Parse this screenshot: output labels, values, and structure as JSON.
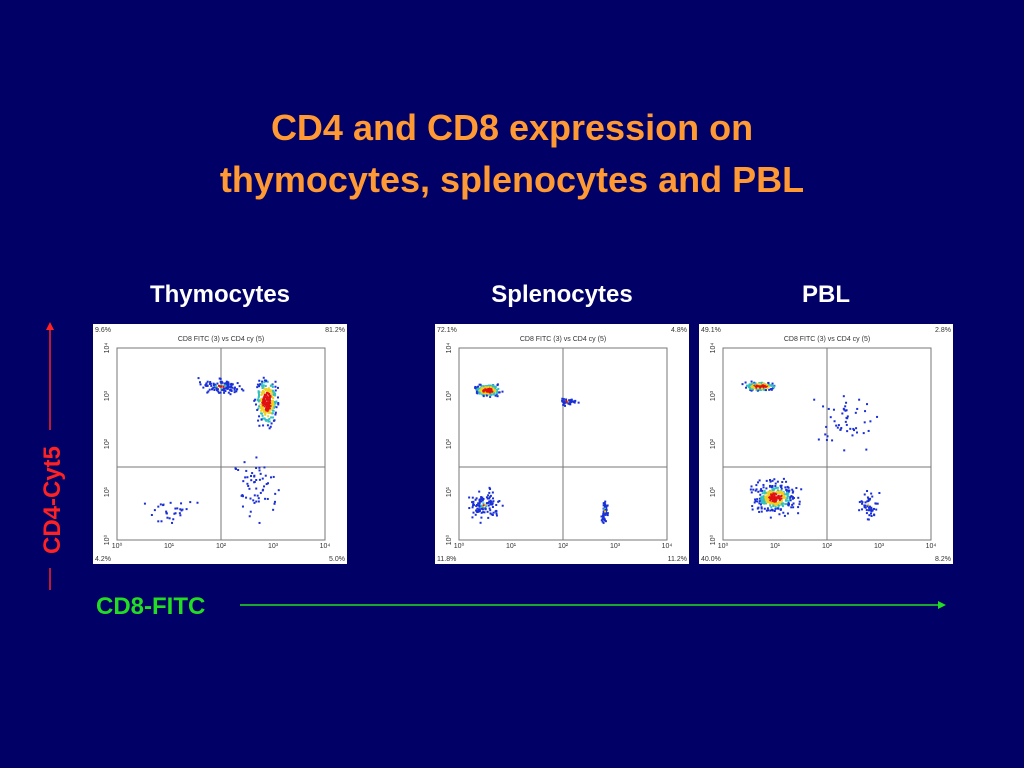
{
  "title": [
    "CD4 and CD8 expression on",
    "thymocytes, splenocytes and PBL"
  ],
  "y_axis_label": "CD4-Cyt5",
  "x_axis_label": "CD8-FITC",
  "axis_ticks": [
    "10⁰",
    "10¹",
    "10²",
    "10³",
    "10⁴"
  ],
  "panels": [
    {
      "label": "Thymocytes",
      "plot_title": "CD8 FITC (3) vs CD4 cy (5)",
      "quadrants": {
        "upper_left": "9.6%",
        "upper_right": "81.2%",
        "lower_left": "4.2%",
        "lower_right": "5.0%"
      }
    },
    {
      "label": "Splenocytes",
      "plot_title": "CD8 FITC (3) vs CD4 cy (5)",
      "quadrants": {
        "upper_left": "72.1%",
        "upper_right": "4.8%",
        "lower_left": "11.8%",
        "lower_right": "11.2%"
      }
    },
    {
      "label": "PBL",
      "plot_title": "CD8 FITC (3) vs CD4 cy (5)",
      "quadrants": {
        "upper_left": "49.1%",
        "upper_right": "2.8%",
        "lower_left": "40.0%",
        "lower_right": "8.2%"
      }
    }
  ]
}
